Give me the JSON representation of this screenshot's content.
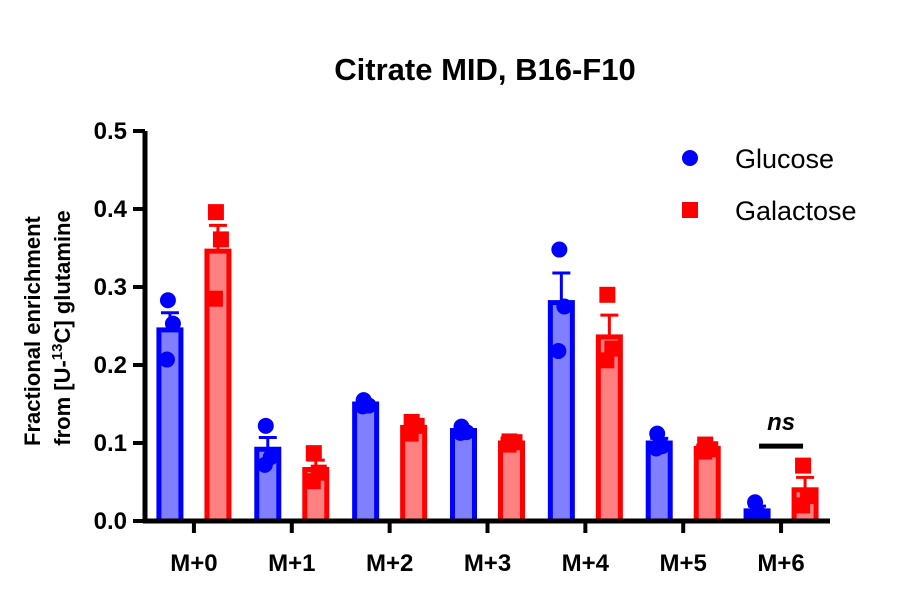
{
  "chart_data": {
    "type": "bar",
    "title": "Citrate MID, B16-F10",
    "ylabel_line1": "Fractional enrichment",
    "ylabel_line2_prefix": "from [U-",
    "ylabel_superscript": "13",
    "ylabel_line2_suffix": "C] glutamine",
    "xlabel": "",
    "ylim": [
      0,
      0.5
    ],
    "yticks": [
      0.0,
      0.1,
      0.2,
      0.3,
      0.4,
      0.5
    ],
    "ytick_labels": [
      "0.0",
      "0.1",
      "0.2",
      "0.3",
      "0.4",
      "0.5"
    ],
    "categories": [
      "M+0",
      "M+1",
      "M+2",
      "M+3",
      "M+4",
      "M+5",
      "M+6"
    ],
    "legend_position": "top-right",
    "series": [
      {
        "name": "Glucose",
        "marker": "circle",
        "color": "#0000FF",
        "fill_color": "#8080FF",
        "values": [
          0.245,
          0.092,
          0.15,
          0.116,
          0.28,
          0.1,
          0.013
        ],
        "errors": [
          0.022,
          0.015,
          0.003,
          0.003,
          0.038,
          0.006,
          0.006
        ],
        "points": [
          [
            0.283,
            0.253,
            0.207
          ],
          [
            0.122,
            0.082,
            0.072
          ],
          [
            0.155,
            0.148,
            0.147
          ],
          [
            0.121,
            0.114,
            0.113
          ],
          [
            0.348,
            0.275,
            0.218
          ],
          [
            0.112,
            0.096,
            0.093
          ],
          [
            0.024,
            0.008,
            0.007
          ]
        ]
      },
      {
        "name": "Galactose",
        "marker": "square",
        "color": "#FF0000",
        "fill_color": "#FF8080",
        "values": [
          0.346,
          0.066,
          0.12,
          0.1,
          0.236,
          0.093,
          0.04
        ],
        "errors": [
          0.033,
          0.012,
          0.005,
          0.002,
          0.028,
          0.003,
          0.016
        ],
        "points": [
          [
            0.396,
            0.361,
            0.285
          ],
          [
            0.087,
            0.062,
            0.051
          ],
          [
            0.127,
            0.122,
            0.112
          ],
          [
            0.102,
            0.101,
            0.098
          ],
          [
            0.29,
            0.221,
            0.206
          ],
          [
            0.098,
            0.092,
            0.089
          ],
          [
            0.071,
            0.032,
            0.02
          ]
        ]
      }
    ],
    "annotations": [
      {
        "text": "ns",
        "category_index": 6,
        "y": 0.096
      }
    ]
  }
}
